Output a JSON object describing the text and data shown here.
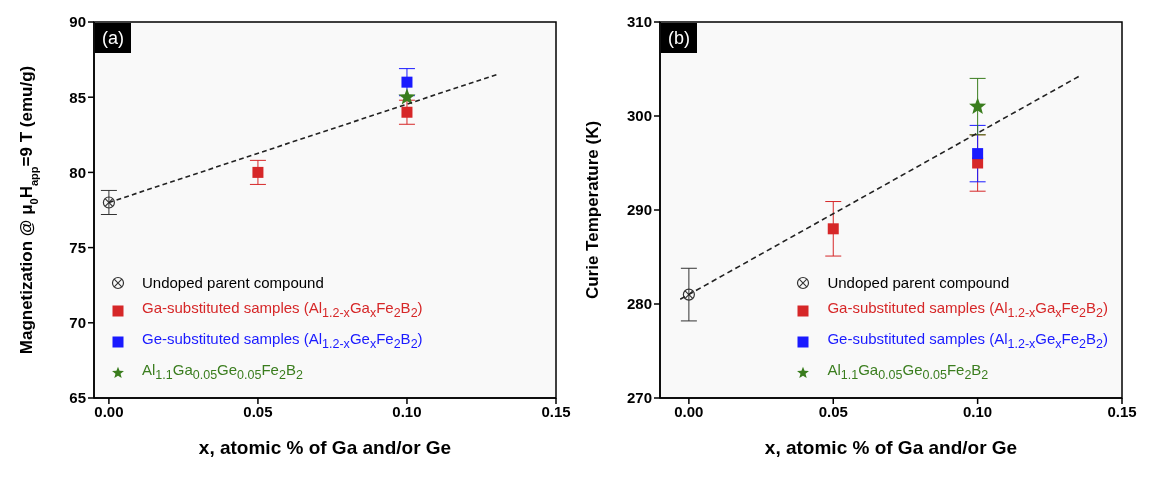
{
  "chart_data": [
    {
      "type": "scatter",
      "title": "(a)",
      "xlabel": "x, atomic % of Ga and/or Ge",
      "ylabel": "Magnetization @ μ$_{0}$H$_{app}$=9 T (emu/g)",
      "xlim": [
        -0.005,
        0.15
      ],
      "ylim": [
        65,
        90
      ],
      "xticks": [
        {
          "value": 0,
          "label": "0.00"
        },
        {
          "value": 0.05,
          "label": "0.05"
        },
        {
          "value": 0.1,
          "label": "0.10"
        },
        {
          "value": 0.15,
          "label": "0.15"
        }
      ],
      "yticks": [
        65,
        70,
        75,
        80,
        85,
        90
      ],
      "legend": "bottom left",
      "series": [
        {
          "name": "Undoped parent compound",
          "color": "#333333",
          "marker": "circle",
          "x": [
            0
          ],
          "values": [
            78
          ],
          "errors": [
            0.8
          ]
        },
        {
          "name": "Ga-substituted samples (Al$_{1.2-x}$Ga$_{x}$Fe$_{2}$B$_{2}$)",
          "color": "#d62728",
          "marker": "square",
          "x": [
            0.05,
            0.1
          ],
          "values": [
            80,
            84
          ],
          "errors": [
            0.8,
            0.8
          ]
        },
        {
          "name": "Ge-substituted samples (Al$_{1.2-x}$Ge$_{x}$Fe$_{2}$B$_{2}$)",
          "color": "#1a1aff",
          "marker": "square",
          "x": [
            0.1
          ],
          "values": [
            86
          ],
          "errors": [
            0.9
          ]
        },
        {
          "name": "Al$_{1.1}$Ga$_{0.05}$Ge$_{0.05}$Fe$_{2}$B$_{2}$",
          "color": "#3a7d1e",
          "marker": "star",
          "x": [
            0.1
          ],
          "values": [
            85
          ]
        },
        {
          "type": "line",
          "color": "#222222",
          "line_style": "dashed",
          "x": [
            0,
            0.13
          ],
          "values": [
            78,
            86.5
          ]
        }
      ]
    },
    {
      "type": "scatter",
      "title": "(b)",
      "xlabel": "x, atomic % of Ga and/or Ge",
      "ylabel": "Curie Temperature (K)",
      "xlim": [
        -0.01,
        0.15
      ],
      "ylim": [
        270,
        310
      ],
      "xticks": [
        {
          "value": 0,
          "label": "0.00"
        },
        {
          "value": 0.05,
          "label": "0.05"
        },
        {
          "value": 0.1,
          "label": "0.10"
        },
        {
          "value": 0.15,
          "label": "0.15"
        }
      ],
      "yticks": [
        270,
        280,
        290,
        300,
        310
      ],
      "legend": "bottom right",
      "series": [
        {
          "name": "Undoped parent compound",
          "color": "#333333",
          "marker": "circle",
          "x": [
            0
          ],
          "values": [
            281
          ],
          "errors": [
            2.8
          ]
        },
        {
          "name": "Ga-substituted samples (Al$_{1.2-x}$Ga$_{x}$Fe$_{2}$B$_{2}$)",
          "color": "#d62728",
          "marker": "square",
          "x": [
            0.05,
            0.1
          ],
          "values": [
            288,
            295
          ],
          "errors": [
            2.9,
            3
          ]
        },
        {
          "name": "Ge-substituted samples (Al$_{1.2-x}$Ge$_{x}$Fe$_{2}$B$_{2}$)",
          "color": "#1a1aff",
          "marker": "square",
          "x": [
            0.1
          ],
          "values": [
            296
          ],
          "errors": [
            3
          ]
        },
        {
          "name": "Al$_{1.1}$Ga$_{0.05}$Ge$_{0.05}$Fe$_{2}$B$_{2}$",
          "color": "#3a7d1e",
          "marker": "star",
          "x": [
            0.1
          ],
          "values": [
            301
          ],
          "errors": [
            3
          ]
        },
        {
          "type": "line",
          "color": "#222222",
          "line_style": "dashed",
          "x": [
            -0.003,
            0.135
          ],
          "values": [
            280.5,
            304.2
          ]
        }
      ]
    }
  ]
}
